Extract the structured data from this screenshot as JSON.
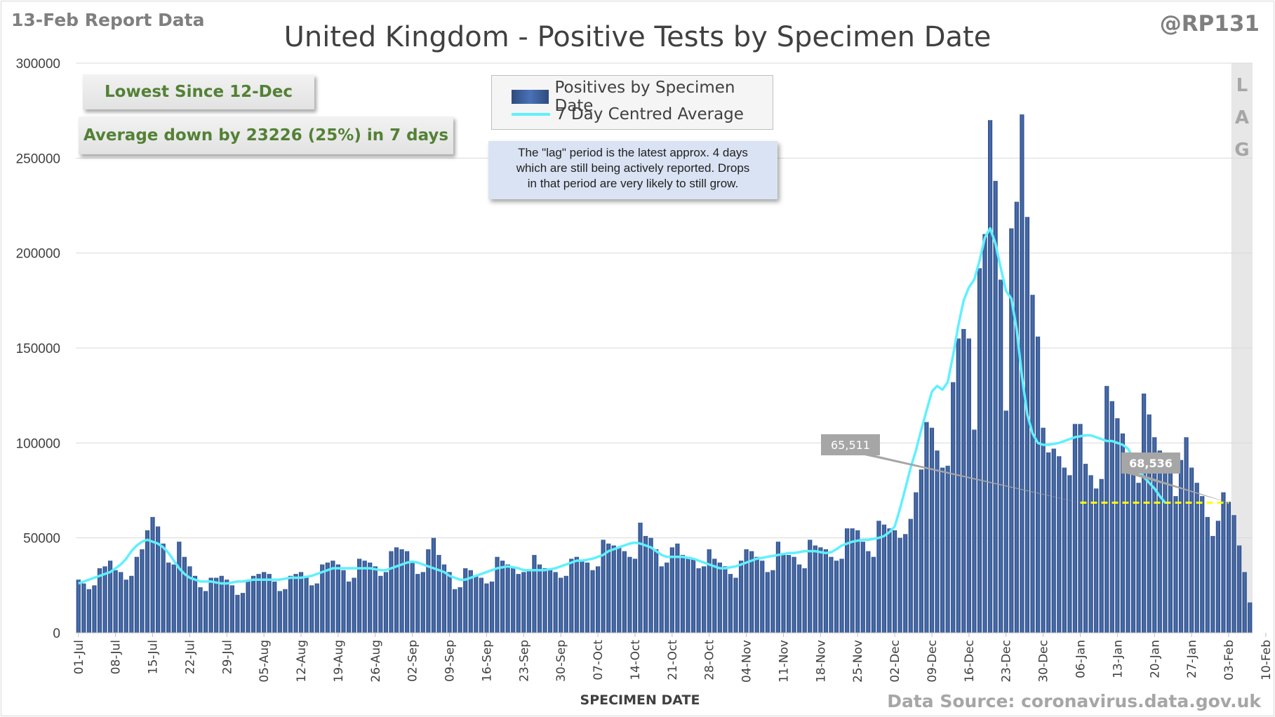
{
  "header": {
    "report_label": "13-Feb Report Data",
    "handle": "@RP131",
    "title": "United Kingdom - Positive Tests by Specimen Date"
  },
  "callouts": {
    "lowest": "Lowest Since 12-Dec",
    "average": "Average down by 23226 (25%) in 7 days"
  },
  "legend": {
    "bars": "Positives by Specimen Date",
    "line": "7 Day Centred Average"
  },
  "note": {
    "line1": "The \"lag\" period is the latest approx. 4 days",
    "line2": "which are still being actively reported. Drops",
    "line3": "in that period are very likely to still grow."
  },
  "footer": {
    "source": "Data Source: coronavirus.data.gov.uk"
  },
  "colors": {
    "bar": "#2f4b7c",
    "bar_highlight": "#4a72b8",
    "average_line": "#5ff0ff",
    "comparison_line": "#ffff00",
    "lag_shade": "#e7e7e7",
    "callout_text": "#538135"
  },
  "chart_data": {
    "type": "bar",
    "xlabel": "SPECIMEN DATE",
    "ylabel": "",
    "ylim": [
      0,
      300000
    ],
    "yticks": [
      0,
      50000,
      100000,
      150000,
      200000,
      250000,
      300000
    ],
    "x_start": "2020-07-01",
    "x_end": "2021-02-12",
    "x_ticks": [
      "01-Jul",
      "08-Jul",
      "15-Jul",
      "22-Jul",
      "29-Jul",
      "05-Aug",
      "12-Aug",
      "19-Aug",
      "26-Aug",
      "02-Sep",
      "09-Sep",
      "16-Sep",
      "23-Sep",
      "30-Sep",
      "07-Oct",
      "14-Oct",
      "21-Oct",
      "28-Oct",
      "04-Nov",
      "11-Nov",
      "18-Nov",
      "25-Nov",
      "02-Dec",
      "09-Dec",
      "16-Dec",
      "23-Dec",
      "30-Dec",
      "06-Jan",
      "13-Jan",
      "20-Jan",
      "27-Jan",
      "03-Feb",
      "10-Feb"
    ],
    "lag_label": [
      "L",
      "A",
      "G"
    ],
    "annotations": [
      {
        "label": "65,511",
        "date": "2021-01-06"
      },
      {
        "label": "68,536",
        "date": "2021-02-03"
      }
    ],
    "comparison_level": 68536,
    "series": [
      {
        "name": "Positives by Specimen Date",
        "values": [
          28000,
          26000,
          23000,
          25000,
          34000,
          35000,
          38000,
          33000,
          32000,
          28000,
          30000,
          40000,
          44000,
          54000,
          61000,
          56000,
          47000,
          37000,
          36000,
          48000,
          40000,
          35000,
          30000,
          24000,
          22000,
          29000,
          29000,
          30000,
          28000,
          25000,
          20000,
          21000,
          28000,
          30000,
          31000,
          32000,
          31000,
          27000,
          22000,
          23000,
          30000,
          31000,
          32000,
          30000,
          25000,
          26000,
          36000,
          37000,
          38000,
          36000,
          33000,
          27000,
          29000,
          39000,
          38000,
          37000,
          35000,
          30000,
          32000,
          43000,
          45000,
          44000,
          43000,
          37000,
          31000,
          32000,
          44000,
          50000,
          41000,
          36000,
          32000,
          23000,
          24000,
          34000,
          33000,
          30000,
          29000,
          26000,
          27000,
          40000,
          38000,
          36000,
          34000,
          31000,
          32000,
          33000,
          41000,
          36000,
          34000,
          33000,
          32000,
          29000,
          30000,
          39000,
          40000,
          38000,
          37000,
          33000,
          35000,
          49000,
          47000,
          46000,
          45000,
          43000,
          40000,
          39000,
          58000,
          51000,
          50000,
          44000,
          35000,
          37000,
          45000,
          47000,
          41000,
          40000,
          39000,
          34000,
          35000,
          44000,
          39000,
          37000,
          35000,
          31000,
          29000,
          38000,
          44000,
          43000,
          40000,
          38000,
          32000,
          33000,
          48000,
          42000,
          41000,
          40000,
          36000,
          34000,
          49000,
          46000,
          45000,
          44000,
          40000,
          38000,
          39000,
          55000,
          55000,
          54000,
          48000,
          43000,
          40000,
          59000,
          57000,
          55000,
          54000,
          50000,
          52000,
          60000,
          74000,
          86000,
          111000,
          108000,
          96000,
          87000,
          88000,
          132000,
          155000,
          160000,
          155000,
          107000,
          192000,
          210000,
          270000,
          238000,
          186000,
          117000,
          213000,
          227000,
          273000,
          219000,
          178000,
          156000,
          108000,
          95000,
          97000,
          93000,
          87000,
          83000,
          110000,
          110000,
          89000,
          83000,
          76000,
          81000,
          130000,
          122000,
          113000,
          105000,
          95000,
          84000,
          79000,
          126000,
          115000,
          103000,
          96000,
          88000,
          84000,
          72000,
          91000,
          103000,
          87000,
          79000,
          72000,
          61000,
          51000,
          59000,
          74000,
          69000,
          62000,
          46000,
          32000,
          16000
        ]
      },
      {
        "name": "7 Day Centred Average",
        "values": [
          26000,
          27000,
          28000,
          29000,
          30000,
          31000,
          32000,
          34000,
          36000,
          39000,
          43000,
          46000,
          48000,
          49000,
          48000,
          47000,
          45000,
          42000,
          38000,
          34000,
          31000,
          29000,
          28000,
          27000,
          27000,
          27000,
          26500,
          26000,
          26000,
          26500,
          27000,
          27000,
          27500,
          28000,
          28000,
          28000,
          28000,
          28000,
          28000,
          28500,
          29000,
          29000,
          29000,
          29500,
          30000,
          31000,
          32000,
          33000,
          34000,
          34000,
          34000,
          34000,
          34000,
          34000,
          34000,
          34000,
          33500,
          33000,
          33000,
          34000,
          35000,
          36000,
          37000,
          37500,
          37000,
          36000,
          35000,
          34000,
          33000,
          32000,
          30000,
          29000,
          28000,
          28000,
          29000,
          30000,
          31000,
          32000,
          33000,
          34000,
          34500,
          35000,
          34500,
          34000,
          33000,
          33000,
          33000,
          33000,
          33000,
          33500,
          34000,
          35000,
          36000,
          37000,
          38000,
          38000,
          38500,
          39000,
          40000,
          41000,
          43000,
          44000,
          45000,
          46000,
          47000,
          47500,
          47000,
          46000,
          45000,
          43000,
          41000,
          40000,
          40000,
          40000,
          40000,
          39500,
          39000,
          38000,
          37000,
          36000,
          35000,
          34000,
          34000,
          34500,
          35000,
          36000,
          37000,
          38000,
          39000,
          39500,
          40000,
          40500,
          41000,
          41500,
          42000,
          42000,
          42500,
          43000,
          43000,
          43000,
          42500,
          42000,
          42500,
          44000,
          46000,
          47000,
          48000,
          48500,
          49000,
          49000,
          49500,
          50000,
          51000,
          53000,
          56000,
          65511,
          76000,
          87000,
          96000,
          107000,
          117000,
          127000,
          130000,
          128000,
          132000,
          146000,
          162000,
          175000,
          182000,
          186000,
          196000,
          208000,
          213000,
          205000,
          192000,
          180000,
          176000,
          160000,
          135000,
          115000,
          105000,
          100000,
          99000,
          99000,
          99500,
          100000,
          101000,
          102000,
          103000,
          103500,
          104000,
          104000,
          103000,
          102000,
          101000,
          101000,
          100000,
          99000,
          97000,
          92000,
          87000,
          82000,
          79000,
          76000,
          72000,
          68536
        ]
      }
    ]
  }
}
